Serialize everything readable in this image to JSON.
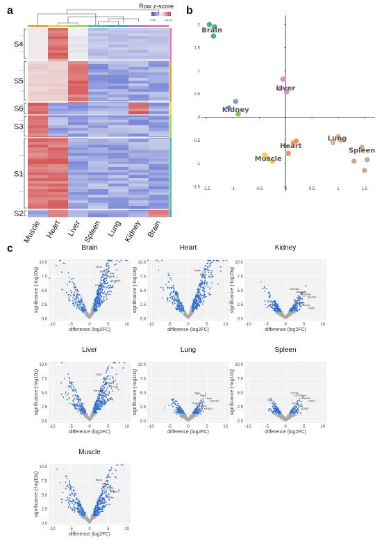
{
  "panels": {
    "a": "a",
    "b": "b",
    "c": "c"
  },
  "heatmap": {
    "legend_title": "Row z-score",
    "legend_min": "-4.96",
    "legend_max": "11.15",
    "columns": [
      "Muscle",
      "Heart",
      "Liver",
      "Spleen",
      "Lung",
      "Kidney",
      "Brain"
    ],
    "clusters": [
      "S4",
      "S5",
      "S6",
      "S3",
      "S1",
      "S2"
    ]
  },
  "chart_data": [
    {
      "type": "scatter",
      "title": "",
      "xlim": [
        -1.6,
        1.7
      ],
      "ylim": [
        -1.6,
        2.2
      ],
      "xticks": [
        "-1.5",
        "-1",
        "-0.5",
        "0",
        "0.5",
        "1",
        "1.5"
      ],
      "yticks": [
        "2",
        "1.5",
        "1",
        "0.5",
        "0",
        "-0.5",
        "-1",
        "-1.5"
      ],
      "groups": [
        {
          "name": "Brain",
          "color": "#3fae7f",
          "points": [
            [
              -1.45,
              2.0
            ],
            [
              -1.35,
              1.95
            ],
            [
              -1.37,
              1.75
            ]
          ],
          "label_at": [
            -1.4,
            1.88
          ]
        },
        {
          "name": "Liver",
          "color": "#e47fc9",
          "points": [
            [
              -0.05,
              0.82
            ],
            [
              0.02,
              0.55
            ],
            [
              -0.1,
              0.62
            ]
          ],
          "label_at": [
            0.0,
            0.62
          ]
        },
        {
          "name": "Kidney",
          "color": "#7d9ad6",
          "points": [
            [
              -0.95,
              0.34
            ],
            [
              -0.9,
              0.07
            ],
            [
              -1.08,
              0.2
            ]
          ],
          "label_at": [
            -0.95,
            0.16
          ]
        },
        {
          "name": "Kidney-green",
          "color": "#8cc34a",
          "points": [
            [
              -0.9,
              0.07
            ]
          ],
          "label_at": null
        },
        {
          "name": "Heart",
          "color": "#f08a4b",
          "points": [
            [
              0.15,
              -0.55
            ],
            [
              0.2,
              -0.52
            ],
            [
              0.05,
              -0.78
            ]
          ],
          "label_at": [
            0.1,
            -0.62
          ]
        },
        {
          "name": "Muscle",
          "color": "#f5c542",
          "points": [
            [
              -0.4,
              -0.82
            ],
            [
              -0.25,
              -0.95
            ],
            [
              -0.35,
              -0.88
            ]
          ],
          "label_at": [
            -0.33,
            -0.9
          ]
        },
        {
          "name": "Lung",
          "color": "#d9b48a",
          "points": [
            [
              0.9,
              -0.55
            ],
            [
              1.0,
              -0.42
            ],
            [
              1.05,
              -0.5
            ]
          ],
          "label_at": [
            0.98,
            -0.46
          ]
        },
        {
          "name": "Spleen",
          "color": "#c9a88a",
          "points": [
            [
              1.3,
              -0.95
            ],
            [
              1.45,
              -0.65
            ],
            [
              1.55,
              -0.92
            ],
            [
              1.5,
              -1.15
            ]
          ],
          "label_at": [
            1.45,
            -0.72
          ]
        }
      ],
      "labels": [
        "Brain",
        "Liver",
        "Kidney",
        "Heart",
        "Muscle",
        "Lung",
        "Spleen"
      ]
    }
  ],
  "volcanoes": [
    {
      "title": "Brain",
      "genes": [
        "Gmd",
        "Slc12a5",
        "Gnao1",
        "Snap25",
        "Prkcg"
      ],
      "spread": 9,
      "strength": 1.0
    },
    {
      "title": "Heart",
      "genes": [
        "Nppb",
        "Myh6"
      ],
      "spread": 9,
      "strength": 0.9
    },
    {
      "title": "Kidney",
      "genes": [
        "Slc34a1",
        "Akap5",
        "Tmem8",
        "Slc7a9",
        "Kl",
        "Cdh16",
        "Umod",
        "Ggt1"
      ],
      "spread": 6,
      "strength": 0.35
    },
    {
      "title": "Liver",
      "genes": [
        "Cps1",
        "Alb",
        "Apoa1",
        "Fgb",
        "Serpina1",
        "Cyp2e1",
        "Ahsg"
      ],
      "spread": 9,
      "strength": 0.85
    },
    {
      "title": "Lung",
      "genes": [
        "Ager",
        "Sftpc",
        "Hopx",
        "Cldn18",
        "Scgb1a1",
        "Rtkn2",
        "Aqp1"
      ],
      "spread": 5,
      "strength": 0.3
    },
    {
      "title": "Spleen",
      "genes": [
        "Cd79a",
        "H2-DMb2",
        "Ms4a1",
        "Cd19",
        "Fcmr",
        "Sell",
        "Spib"
      ],
      "spread": 5,
      "strength": 0.3
    },
    {
      "title": "Muscle",
      "genes": [
        "Myh4",
        "Ckm",
        "Acta1",
        "Tnnt3"
      ],
      "spread": 9,
      "strength": 0.75
    }
  ],
  "volcano_axes": {
    "xlabel": "difference   (log2FC)",
    "ylabel": "significance  (-log10q)",
    "xticks": [
      "-10",
      "-5",
      "0",
      "5",
      "10"
    ],
    "yticks": [
      "0.0",
      "2.5",
      "5.0",
      "7.5",
      "10.0"
    ]
  }
}
